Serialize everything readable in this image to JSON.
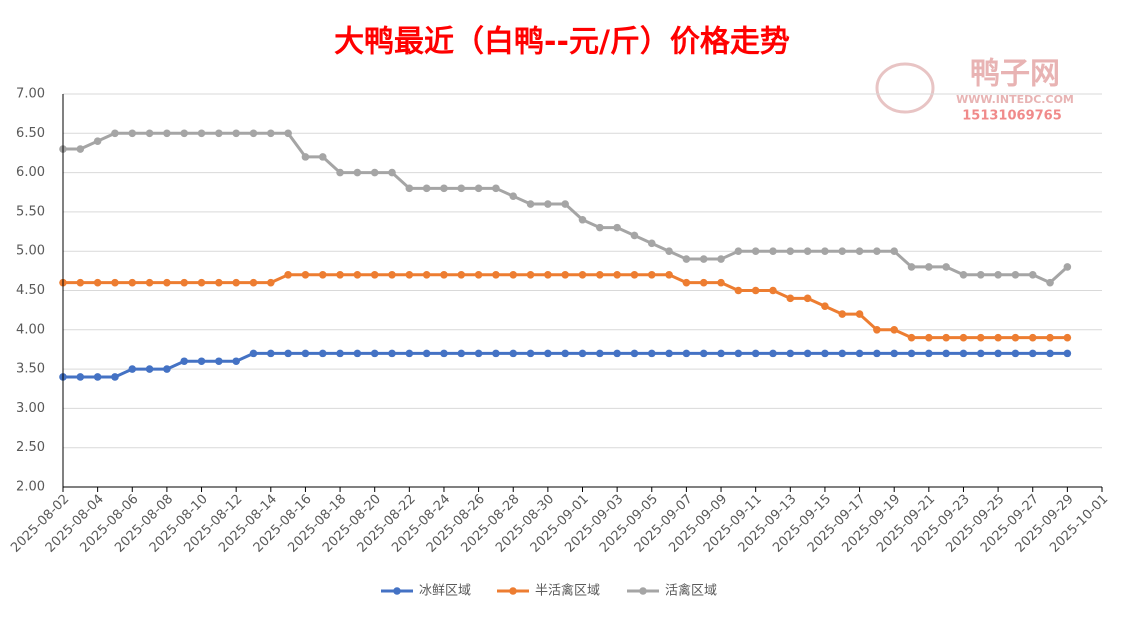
{
  "chart_data": {
    "type": "line",
    "title": "大鸭最近（白鸭--元/斤）价格走势",
    "watermark": {
      "name": "鸭子网",
      "url": "WWW.INTEDC.COM",
      "phone": "15131069765"
    },
    "x": [
      "2025-08-02",
      "2025-08-03",
      "2025-08-04",
      "2025-08-05",
      "2025-08-06",
      "2025-08-07",
      "2025-08-08",
      "2025-08-09",
      "2025-08-10",
      "2025-08-11",
      "2025-08-12",
      "2025-08-13",
      "2025-08-14",
      "2025-08-15",
      "2025-08-16",
      "2025-08-17",
      "2025-08-18",
      "2025-08-19",
      "2025-08-20",
      "2025-08-21",
      "2025-08-22",
      "2025-08-23",
      "2025-08-24",
      "2025-08-25",
      "2025-08-26",
      "2025-08-27",
      "2025-08-28",
      "2025-08-29",
      "2025-08-30",
      "2025-08-31",
      "2025-09-01",
      "2025-09-02",
      "2025-09-03",
      "2025-09-04",
      "2025-09-05",
      "2025-09-06",
      "2025-09-07",
      "2025-09-08",
      "2025-09-09",
      "2025-09-10",
      "2025-09-11",
      "2025-09-12",
      "2025-09-13",
      "2025-09-14",
      "2025-09-15",
      "2025-09-16",
      "2025-09-17",
      "2025-09-18",
      "2025-09-19",
      "2025-09-20",
      "2025-09-21",
      "2025-09-22",
      "2025-09-23",
      "2025-09-24",
      "2025-09-25",
      "2025-09-26",
      "2025-09-27",
      "2025-09-28",
      "2025-09-29"
    ],
    "xlim": [
      "2025-08-02",
      "2025-10-01"
    ],
    "xticks": [
      "2025-08-02",
      "2025-08-04",
      "2025-08-06",
      "2025-08-08",
      "2025-08-10",
      "2025-08-12",
      "2025-08-14",
      "2025-08-16",
      "2025-08-18",
      "2025-08-20",
      "2025-08-22",
      "2025-08-24",
      "2025-08-26",
      "2025-08-28",
      "2025-08-30",
      "2025-09-01",
      "2025-09-03",
      "2025-09-05",
      "2025-09-07",
      "2025-09-09",
      "2025-09-11",
      "2025-09-13",
      "2025-09-15",
      "2025-09-17",
      "2025-09-19",
      "2025-09-21",
      "2025-09-23",
      "2025-09-25",
      "2025-09-27",
      "2025-09-29",
      "2025-10-01"
    ],
    "ylim": [
      2,
      7
    ],
    "yticks": [
      {
        "value": 2,
        "label": "2.00"
      },
      {
        "value": 2.5,
        "label": "2.50"
      },
      {
        "value": 3,
        "label": "3.00"
      },
      {
        "value": 3.5,
        "label": "3.50"
      },
      {
        "value": 4,
        "label": "4.00"
      },
      {
        "value": 4.5,
        "label": "4.50"
      },
      {
        "value": 5,
        "label": "5.00"
      },
      {
        "value": 5.5,
        "label": "5.50"
      },
      {
        "value": 6,
        "label": "6.00"
      },
      {
        "value": 6.5,
        "label": "6.50"
      },
      {
        "value": 7,
        "label": "7.00"
      }
    ],
    "grid": true,
    "legend": "bottom",
    "series": [
      {
        "name": "冰鲜区域",
        "color": "#4472c4",
        "values": [
          3.4,
          3.4,
          3.4,
          3.4,
          3.5,
          3.5,
          3.5,
          3.6,
          3.6,
          3.6,
          3.6,
          3.7,
          3.7,
          3.7,
          3.7,
          3.7,
          3.7,
          3.7,
          3.7,
          3.7,
          3.7,
          3.7,
          3.7,
          3.7,
          3.7,
          3.7,
          3.7,
          3.7,
          3.7,
          3.7,
          3.7,
          3.7,
          3.7,
          3.7,
          3.7,
          3.7,
          3.7,
          3.7,
          3.7,
          3.7,
          3.7,
          3.7,
          3.7,
          3.7,
          3.7,
          3.7,
          3.7,
          3.7,
          3.7,
          3.7,
          3.7,
          3.7,
          3.7,
          3.7,
          3.7,
          3.7,
          3.7,
          3.7,
          3.7
        ]
      },
      {
        "name": "半活禽区域",
        "color": "#ed7d31",
        "values": [
          4.6,
          4.6,
          4.6,
          4.6,
          4.6,
          4.6,
          4.6,
          4.6,
          4.6,
          4.6,
          4.6,
          4.6,
          4.6,
          4.7,
          4.7,
          4.7,
          4.7,
          4.7,
          4.7,
          4.7,
          4.7,
          4.7,
          4.7,
          4.7,
          4.7,
          4.7,
          4.7,
          4.7,
          4.7,
          4.7,
          4.7,
          4.7,
          4.7,
          4.7,
          4.7,
          4.7,
          4.6,
          4.6,
          4.6,
          4.5,
          4.5,
          4.5,
          4.4,
          4.4,
          4.3,
          4.2,
          4.2,
          4.0,
          4.0,
          3.9,
          3.9,
          3.9,
          3.9,
          3.9,
          3.9,
          3.9,
          3.9,
          3.9,
          3.9
        ]
      },
      {
        "name": "活禽区域",
        "color": "#a5a5a5",
        "values": [
          6.3,
          6.3,
          6.4,
          6.5,
          6.5,
          6.5,
          6.5,
          6.5,
          6.5,
          6.5,
          6.5,
          6.5,
          6.5,
          6.5,
          6.2,
          6.2,
          6.0,
          6.0,
          6.0,
          6.0,
          5.8,
          5.8,
          5.8,
          5.8,
          5.8,
          5.8,
          5.7,
          5.6,
          5.6,
          5.6,
          5.4,
          5.3,
          5.3,
          5.2,
          5.1,
          5.0,
          4.9,
          4.9,
          4.9,
          5.0,
          5.0,
          5.0,
          5.0,
          5.0,
          5.0,
          5.0,
          5.0,
          5.0,
          5.0,
          4.8,
          4.8,
          4.8,
          4.7,
          4.7,
          4.7,
          4.7,
          4.7,
          4.6,
          4.8
        ]
      }
    ]
  }
}
